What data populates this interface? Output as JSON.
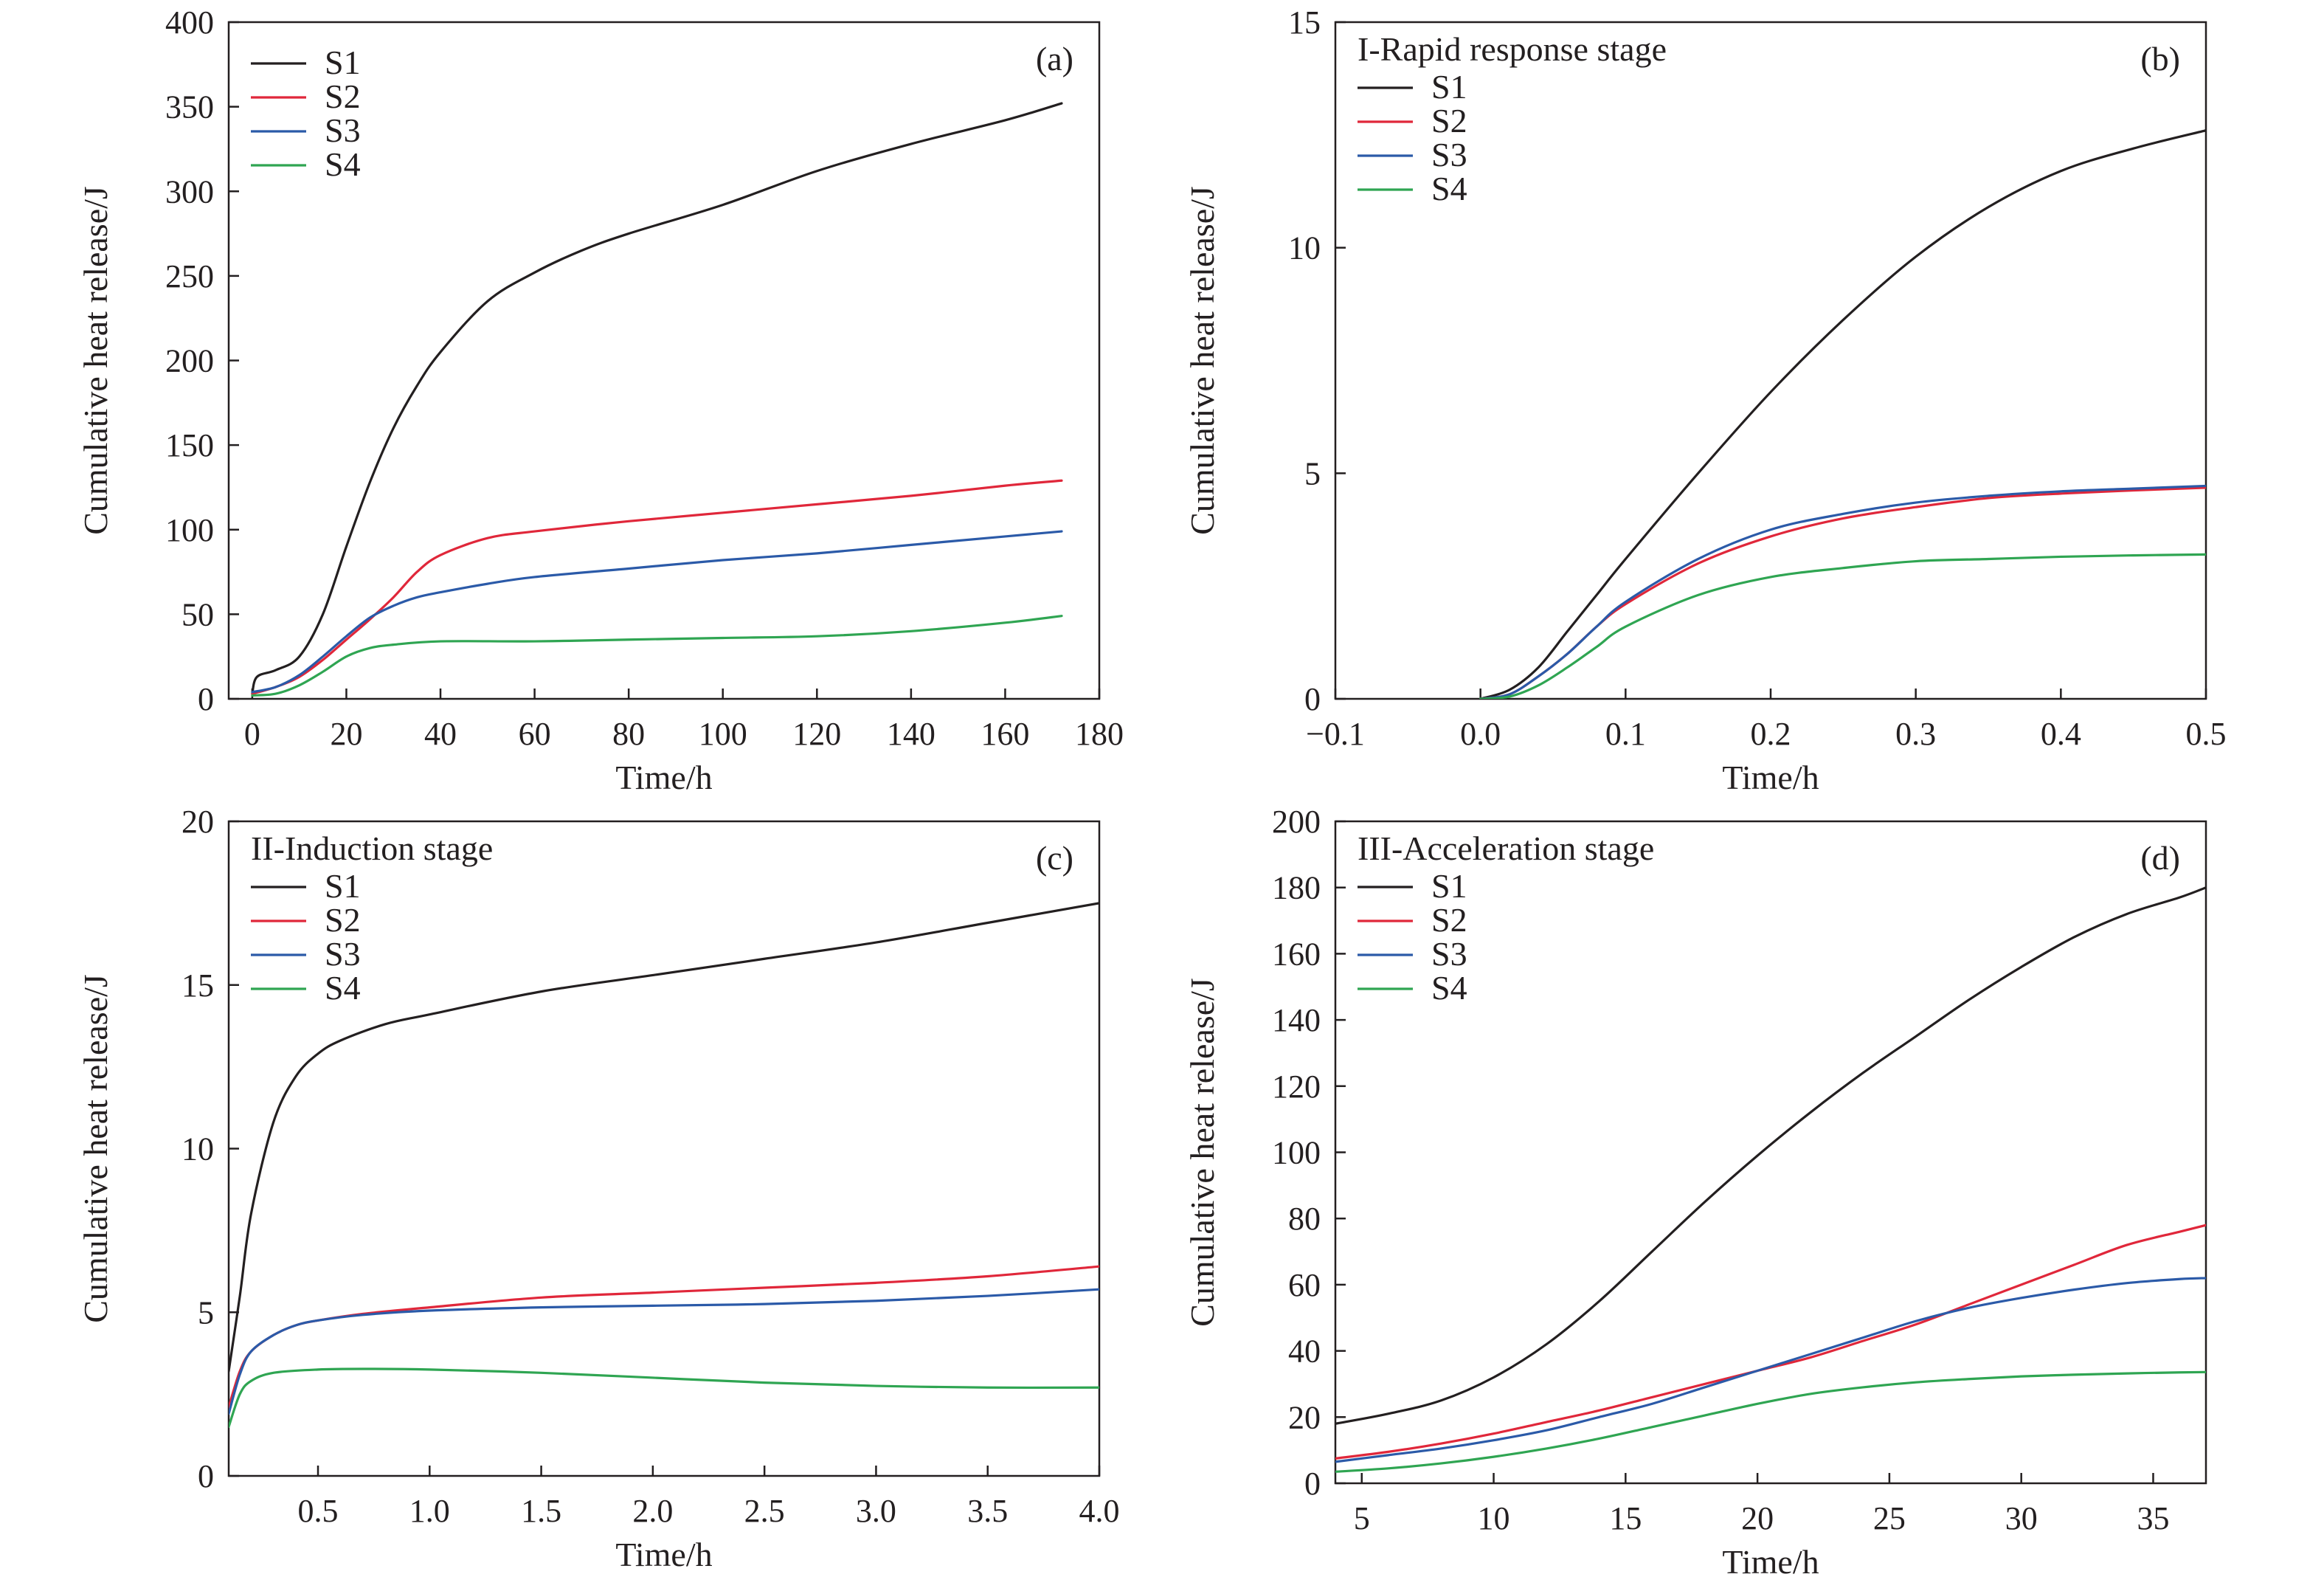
{
  "chart_data": [
    {
      "type": "line",
      "panel": "a",
      "tag": "(a)",
      "stage_title": "",
      "xlabel": "Time/h",
      "ylabel": "Cumulative heat release/J",
      "xlim": [
        -5,
        180
      ],
      "ylim": [
        0,
        400
      ],
      "xticks": [
        0,
        20,
        40,
        60,
        80,
        100,
        120,
        140,
        160,
        180
      ],
      "yticks": [
        0,
        50,
        100,
        150,
        200,
        250,
        300,
        350,
        400
      ],
      "grid": false,
      "legend_position": "top-left",
      "series": [
        {
          "name": "S1",
          "color": "#231f20",
          "x": [
            0,
            1,
            5,
            10,
            15,
            20,
            25,
            30,
            35,
            40,
            50,
            60,
            70,
            80,
            100,
            120,
            140,
            160,
            172
          ],
          "y": [
            3,
            13,
            17,
            25,
            50,
            90,
            128,
            160,
            185,
            205,
            235,
            252,
            265,
            275,
            292,
            312,
            328,
            342,
            352
          ]
        },
        {
          "name": "S2",
          "color": "#e0273a",
          "x": [
            0,
            5,
            10,
            15,
            20,
            25,
            30,
            35,
            40,
            50,
            60,
            80,
            100,
            120,
            140,
            160,
            172
          ],
          "y": [
            3,
            7,
            13,
            23,
            35,
            47,
            60,
            75,
            85,
            95,
            99,
            105,
            110,
            115,
            120,
            126,
            129
          ]
        },
        {
          "name": "S3",
          "color": "#2b5aa8",
          "x": [
            0,
            5,
            10,
            15,
            20,
            25,
            30,
            35,
            40,
            50,
            60,
            80,
            100,
            120,
            140,
            160,
            172
          ],
          "y": [
            4,
            7,
            14,
            25,
            37,
            48,
            55,
            60,
            63,
            68,
            72,
            77,
            82,
            86,
            91,
            96,
            99
          ]
        },
        {
          "name": "S4",
          "color": "#2fa552",
          "x": [
            0,
            5,
            10,
            15,
            20,
            25,
            30,
            40,
            60,
            80,
            100,
            120,
            140,
            160,
            172
          ],
          "y": [
            2,
            3,
            8,
            16,
            25,
            30,
            32,
            34,
            34,
            35,
            36,
            37,
            40,
            45,
            49
          ]
        }
      ]
    },
    {
      "type": "line",
      "panel": "b",
      "tag": "(b)",
      "stage_title": "I-Rapid response stage",
      "xlabel": "Time/h",
      "ylabel": "Cumulative heat release/J",
      "xlim": [
        -0.1,
        0.5
      ],
      "ylim": [
        0,
        15
      ],
      "xticks": [
        -0.1,
        0.0,
        0.1,
        0.2,
        0.3,
        0.4,
        0.5
      ],
      "xticklabels": [
        "−0.1",
        "0.0",
        "0.1",
        "0.2",
        "0.3",
        "0.4",
        "0.5"
      ],
      "yticks": [
        0,
        5,
        10,
        15
      ],
      "grid": false,
      "legend_position": "top-left",
      "series": [
        {
          "name": "S1",
          "color": "#231f20",
          "x": [
            0.0,
            0.02,
            0.04,
            0.06,
            0.08,
            0.1,
            0.15,
            0.2,
            0.25,
            0.3,
            0.35,
            0.4,
            0.45,
            0.5
          ],
          "y": [
            0,
            0.2,
            0.7,
            1.5,
            2.3,
            3.1,
            5.0,
            6.8,
            8.4,
            9.8,
            10.9,
            11.7,
            12.2,
            12.6
          ]
        },
        {
          "name": "S2",
          "color": "#e0273a",
          "x": [
            0.0,
            0.02,
            0.04,
            0.06,
            0.08,
            0.1,
            0.15,
            0.2,
            0.25,
            0.3,
            0.35,
            0.4,
            0.45,
            0.5
          ],
          "y": [
            0,
            0.1,
            0.5,
            1.0,
            1.6,
            2.1,
            3.0,
            3.6,
            4.0,
            4.25,
            4.45,
            4.55,
            4.62,
            4.68
          ]
        },
        {
          "name": "S3",
          "color": "#2b5aa8",
          "x": [
            0.0,
            0.02,
            0.04,
            0.06,
            0.08,
            0.1,
            0.15,
            0.2,
            0.25,
            0.3,
            0.35,
            0.4,
            0.45,
            0.5
          ],
          "y": [
            0,
            0.1,
            0.5,
            1.0,
            1.6,
            2.15,
            3.1,
            3.75,
            4.1,
            4.35,
            4.5,
            4.6,
            4.66,
            4.72
          ]
        },
        {
          "name": "S4",
          "color": "#2fa552",
          "x": [
            0.0,
            0.02,
            0.04,
            0.06,
            0.08,
            0.1,
            0.15,
            0.2,
            0.25,
            0.3,
            0.35,
            0.4,
            0.45,
            0.5
          ],
          "y": [
            0,
            0.05,
            0.3,
            0.7,
            1.15,
            1.6,
            2.3,
            2.7,
            2.9,
            3.05,
            3.1,
            3.15,
            3.18,
            3.2
          ]
        }
      ]
    },
    {
      "type": "line",
      "panel": "c",
      "tag": "(c)",
      "stage_title": "II-Induction stage",
      "xlabel": "Time/h",
      "ylabel": "Cumulative heat release/J",
      "xlim": [
        0.1,
        4.0
      ],
      "ylim": [
        0,
        20
      ],
      "xticks": [
        0.5,
        1.0,
        1.5,
        2.0,
        2.5,
        3.0,
        3.5,
        4.0
      ],
      "xticklabels": [
        "0.5",
        "1.0",
        "1.5",
        "2.0",
        "2.5",
        "3.0",
        "3.5",
        "4.0"
      ],
      "yticks": [
        0,
        5,
        10,
        15,
        20
      ],
      "grid": false,
      "legend_position": "top-left",
      "series": [
        {
          "name": "S1",
          "color": "#231f20",
          "x": [
            0.1,
            0.15,
            0.2,
            0.3,
            0.4,
            0.5,
            0.6,
            0.8,
            1.0,
            1.5,
            2.0,
            2.5,
            3.0,
            3.5,
            4.0
          ],
          "y": [
            3.2,
            5.5,
            8.0,
            10.8,
            12.2,
            12.9,
            13.3,
            13.8,
            14.1,
            14.8,
            15.3,
            15.8,
            16.3,
            16.9,
            17.5
          ]
        },
        {
          "name": "S2",
          "color": "#e0273a",
          "x": [
            0.1,
            0.15,
            0.2,
            0.3,
            0.4,
            0.5,
            0.7,
            1.0,
            1.5,
            2.0,
            2.5,
            3.0,
            3.5,
            4.0
          ],
          "y": [
            2.1,
            3.2,
            3.8,
            4.3,
            4.6,
            4.75,
            4.95,
            5.15,
            5.45,
            5.6,
            5.75,
            5.9,
            6.1,
            6.4
          ]
        },
        {
          "name": "S3",
          "color": "#2b5aa8",
          "x": [
            0.1,
            0.15,
            0.2,
            0.3,
            0.4,
            0.5,
            0.7,
            1.0,
            1.5,
            2.0,
            2.5,
            3.0,
            3.5,
            4.0
          ],
          "y": [
            1.9,
            3.1,
            3.8,
            4.3,
            4.6,
            4.75,
            4.92,
            5.05,
            5.15,
            5.2,
            5.25,
            5.35,
            5.5,
            5.7
          ]
        },
        {
          "name": "S4",
          "color": "#2fa552",
          "x": [
            0.1,
            0.15,
            0.2,
            0.3,
            0.5,
            0.7,
            1.0,
            1.5,
            2.0,
            2.5,
            3.0,
            3.5,
            4.0
          ],
          "y": [
            1.5,
            2.5,
            2.9,
            3.15,
            3.25,
            3.27,
            3.25,
            3.15,
            3.0,
            2.85,
            2.75,
            2.7,
            2.7
          ]
        }
      ]
    },
    {
      "type": "line",
      "panel": "d",
      "tag": "(d)",
      "stage_title": "III-Acceleration stage",
      "xlabel": "Time/h",
      "ylabel": "Cumulative heat release/J",
      "xlim": [
        4,
        37
      ],
      "ylim": [
        0,
        200
      ],
      "xticks": [
        5,
        10,
        15,
        20,
        25,
        30,
        35
      ],
      "yticks": [
        0,
        20,
        40,
        60,
        80,
        100,
        120,
        140,
        160,
        180,
        200
      ],
      "grid": false,
      "legend_position": "top-left",
      "series": [
        {
          "name": "S1",
          "color": "#231f20",
          "x": [
            4,
            6,
            8,
            10,
            12,
            14,
            16,
            18,
            20,
            22,
            24,
            26,
            28,
            30,
            32,
            34,
            36,
            37
          ],
          "y": [
            18,
            21,
            25,
            32,
            42,
            55,
            70,
            85,
            99,
            112,
            124,
            135,
            146,
            156,
            165,
            172,
            177,
            180
          ]
        },
        {
          "name": "S2",
          "color": "#e0273a",
          "x": [
            4,
            6,
            8,
            10,
            12,
            14,
            16,
            18,
            20,
            22,
            24,
            26,
            28,
            30,
            32,
            34,
            36,
            37
          ],
          "y": [
            7.5,
            9.5,
            12,
            15,
            18.5,
            22,
            26,
            30,
            34,
            38,
            43,
            48,
            54,
            60,
            66,
            72,
            76,
            78
          ]
        },
        {
          "name": "S3",
          "color": "#2b5aa8",
          "x": [
            4,
            6,
            8,
            10,
            12,
            14,
            16,
            18,
            20,
            22,
            24,
            26,
            28,
            30,
            32,
            34,
            36,
            37
          ],
          "y": [
            6.5,
            8.5,
            10.5,
            13,
            16,
            20,
            24,
            29,
            34,
            39,
            44,
            49,
            53,
            56,
            58.5,
            60.5,
            61.7,
            62
          ]
        },
        {
          "name": "S4",
          "color": "#2fa552",
          "x": [
            4,
            6,
            8,
            10,
            12,
            14,
            16,
            18,
            20,
            22,
            24,
            26,
            28,
            30,
            32,
            34,
            36,
            37
          ],
          "y": [
            3.5,
            4.5,
            6,
            8,
            10.5,
            13.5,
            17,
            20.5,
            24,
            27,
            29,
            30.5,
            31.5,
            32.3,
            32.8,
            33.2,
            33.5,
            33.6
          ]
        }
      ]
    }
  ]
}
